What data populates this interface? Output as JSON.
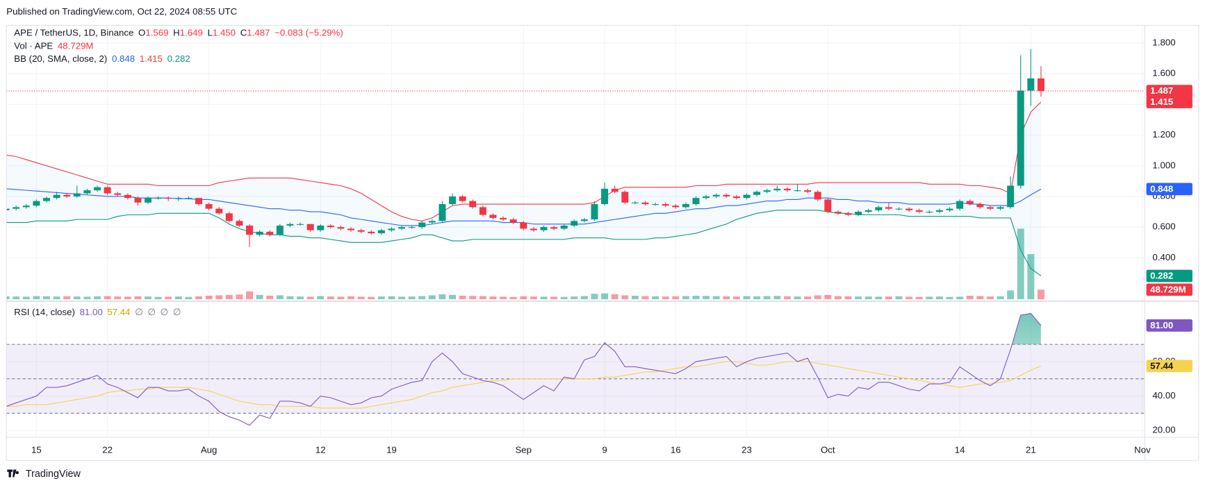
{
  "chart_data": {
    "type": "candlestick",
    "published": "Published on TradingView.com, Oct 22, 2024 08:55 UTC",
    "title": "APE / TetherUS, 1D, Binance",
    "ohlc_legend": [
      {
        "key": "O",
        "value": "1.569"
      },
      {
        "key": "H",
        "value": "1.649"
      },
      {
        "key": "L",
        "value": "1.450"
      },
      {
        "key": "C",
        "value": "1.487"
      }
    ],
    "change": "−0.083 (−5.29%)",
    "volume_legend": {
      "name": "Vol · APE",
      "value": "48.729M"
    },
    "bb_legend": {
      "name": "BB (20, SMA, close, 2)",
      "values": [
        "0.848",
        "1.415",
        "0.282"
      ]
    },
    "rsi_legend": {
      "name": "RSI (14, close)",
      "values": [
        "81.00",
        "57.44",
        "∅",
        "∅",
        "∅",
        "∅"
      ]
    },
    "footer": "TradingView",
    "up_color": "#089981",
    "down_color": "#f23645",
    "bb_colors": {
      "upper": "#f23645",
      "basis": "#2962ff",
      "lower": "#089981"
    },
    "rsi_color": "#7e57c2",
    "rsi_ma_color": "#f5d34e",
    "ylim": [
      0.13,
      1.88
    ],
    "yticks": [
      {
        "value": 0.4,
        "label": "0.400"
      },
      {
        "value": 0.6,
        "label": "0.600"
      },
      {
        "value": 0.8,
        "label": "0.800"
      },
      {
        "value": 1.0,
        "label": "1.000"
      },
      {
        "value": 1.2,
        "label": "1.200"
      },
      {
        "value": 1.4,
        "label": "1.400"
      },
      {
        "value": 1.6,
        "label": "1.600"
      },
      {
        "value": 1.8,
        "label": "1.800"
      }
    ],
    "rsi_ylim": [
      16,
      94
    ],
    "rsi_ticks": [
      {
        "value": 20,
        "label": "20.00"
      },
      {
        "value": 40,
        "label": "40.00"
      },
      {
        "value": 60,
        "label": "60.00"
      }
    ],
    "rsi_bands": [
      70,
      50,
      30
    ],
    "grid": true,
    "categories": [
      null,
      null,
      null,
      "15",
      null,
      null,
      null,
      null,
      null,
      null,
      "22",
      null,
      null,
      null,
      null,
      null,
      null,
      null,
      null,
      null,
      "Aug",
      null,
      null,
      null,
      null,
      null,
      null,
      null,
      null,
      null,
      null,
      "12",
      null,
      null,
      null,
      null,
      null,
      null,
      "19",
      null,
      null,
      null,
      null,
      null,
      null,
      null,
      null,
      null,
      null,
      null,
      null,
      "Sep",
      null,
      null,
      null,
      null,
      null,
      null,
      null,
      "9",
      null,
      null,
      null,
      null,
      null,
      null,
      "16",
      null,
      null,
      null,
      null,
      null,
      null,
      "23",
      null,
      null,
      null,
      null,
      null,
      null,
      null,
      "Oct",
      null,
      null,
      null,
      null,
      null,
      null,
      null,
      null,
      null,
      null,
      null,
      null,
      "14",
      null,
      null,
      null,
      null,
      null,
      null,
      "21",
      null,
      null,
      null,
      null,
      null,
      null,
      null,
      null,
      null,
      null,
      "Nov"
    ],
    "ohlc": [
      [
        0.71,
        0.74,
        0.7,
        0.72
      ],
      [
        0.72,
        0.74,
        0.71,
        0.73
      ],
      [
        0.73,
        0.75,
        0.72,
        0.74
      ],
      [
        0.74,
        0.78,
        0.73,
        0.77
      ],
      [
        0.77,
        0.8,
        0.76,
        0.79
      ],
      [
        0.79,
        0.83,
        0.78,
        0.81
      ],
      [
        0.81,
        0.82,
        0.79,
        0.8
      ],
      [
        0.8,
        0.87,
        0.79,
        0.82
      ],
      [
        0.82,
        0.85,
        0.81,
        0.84
      ],
      [
        0.84,
        0.87,
        0.83,
        0.86
      ],
      [
        0.86,
        0.87,
        0.81,
        0.82
      ],
      [
        0.82,
        0.83,
        0.8,
        0.81
      ],
      [
        0.81,
        0.82,
        0.78,
        0.79
      ],
      [
        0.79,
        0.8,
        0.74,
        0.76
      ],
      [
        0.76,
        0.8,
        0.75,
        0.79
      ],
      [
        0.79,
        0.8,
        0.78,
        0.79
      ],
      [
        0.79,
        0.8,
        0.77,
        0.785
      ],
      [
        0.785,
        0.8,
        0.77,
        0.79
      ],
      [
        0.79,
        0.8,
        0.78,
        0.79
      ],
      [
        0.79,
        0.79,
        0.74,
        0.75
      ],
      [
        0.75,
        0.76,
        0.71,
        0.72
      ],
      [
        0.72,
        0.73,
        0.68,
        0.69
      ],
      [
        0.69,
        0.7,
        0.63,
        0.64
      ],
      [
        0.64,
        0.65,
        0.6,
        0.61
      ],
      [
        0.61,
        0.62,
        0.47,
        0.55
      ],
      [
        0.55,
        0.58,
        0.54,
        0.57
      ],
      [
        0.57,
        0.58,
        0.54,
        0.55
      ],
      [
        0.55,
        0.62,
        0.54,
        0.61
      ],
      [
        0.61,
        0.63,
        0.6,
        0.62
      ],
      [
        0.62,
        0.63,
        0.61,
        0.62
      ],
      [
        0.62,
        0.62,
        0.57,
        0.58
      ],
      [
        0.58,
        0.62,
        0.57,
        0.61
      ],
      [
        0.61,
        0.62,
        0.59,
        0.6
      ],
      [
        0.6,
        0.61,
        0.58,
        0.59
      ],
      [
        0.59,
        0.6,
        0.57,
        0.58
      ],
      [
        0.58,
        0.59,
        0.56,
        0.57
      ],
      [
        0.57,
        0.58,
        0.55,
        0.56
      ],
      [
        0.56,
        0.59,
        0.55,
        0.58
      ],
      [
        0.58,
        0.6,
        0.57,
        0.59
      ],
      [
        0.59,
        0.61,
        0.58,
        0.6
      ],
      [
        0.6,
        0.61,
        0.59,
        0.6
      ],
      [
        0.6,
        0.64,
        0.59,
        0.63
      ],
      [
        0.63,
        0.65,
        0.62,
        0.64
      ],
      [
        0.64,
        0.77,
        0.63,
        0.75
      ],
      [
        0.75,
        0.82,
        0.74,
        0.8
      ],
      [
        0.8,
        0.81,
        0.76,
        0.77
      ],
      [
        0.77,
        0.78,
        0.72,
        0.73
      ],
      [
        0.73,
        0.74,
        0.67,
        0.68
      ],
      [
        0.68,
        0.69,
        0.65,
        0.66
      ],
      [
        0.66,
        0.67,
        0.64,
        0.65
      ],
      [
        0.65,
        0.66,
        0.62,
        0.63
      ],
      [
        0.63,
        0.64,
        0.58,
        0.59
      ],
      [
        0.59,
        0.6,
        0.57,
        0.58
      ],
      [
        0.58,
        0.61,
        0.57,
        0.6
      ],
      [
        0.6,
        0.61,
        0.58,
        0.59
      ],
      [
        0.59,
        0.62,
        0.58,
        0.61
      ],
      [
        0.61,
        0.65,
        0.6,
        0.64
      ],
      [
        0.64,
        0.66,
        0.63,
        0.65
      ],
      [
        0.65,
        0.77,
        0.64,
        0.75
      ],
      [
        0.75,
        0.89,
        0.74,
        0.85
      ],
      [
        0.85,
        0.87,
        0.82,
        0.83
      ],
      [
        0.83,
        0.84,
        0.75,
        0.76
      ],
      [
        0.76,
        0.77,
        0.75,
        0.76
      ],
      [
        0.76,
        0.77,
        0.74,
        0.75
      ],
      [
        0.75,
        0.76,
        0.74,
        0.75
      ],
      [
        0.75,
        0.76,
        0.73,
        0.74
      ],
      [
        0.74,
        0.75,
        0.72,
        0.73
      ],
      [
        0.73,
        0.76,
        0.72,
        0.75
      ],
      [
        0.75,
        0.8,
        0.74,
        0.79
      ],
      [
        0.79,
        0.81,
        0.78,
        0.8
      ],
      [
        0.8,
        0.82,
        0.79,
        0.81
      ],
      [
        0.81,
        0.82,
        0.79,
        0.8
      ],
      [
        0.8,
        0.81,
        0.78,
        0.79
      ],
      [
        0.79,
        0.82,
        0.78,
        0.81
      ],
      [
        0.81,
        0.84,
        0.8,
        0.83
      ],
      [
        0.83,
        0.85,
        0.82,
        0.84
      ],
      [
        0.84,
        0.87,
        0.83,
        0.85
      ],
      [
        0.85,
        0.86,
        0.83,
        0.84
      ],
      [
        0.84,
        0.88,
        0.83,
        0.84
      ],
      [
        0.84,
        0.85,
        0.82,
        0.83
      ],
      [
        0.83,
        0.84,
        0.77,
        0.78
      ],
      [
        0.78,
        0.79,
        0.69,
        0.7
      ],
      [
        0.7,
        0.71,
        0.68,
        0.69
      ],
      [
        0.69,
        0.7,
        0.67,
        0.68
      ],
      [
        0.68,
        0.71,
        0.67,
        0.7
      ],
      [
        0.7,
        0.72,
        0.69,
        0.71
      ],
      [
        0.71,
        0.74,
        0.7,
        0.73
      ],
      [
        0.73,
        0.76,
        0.71,
        0.72
      ],
      [
        0.72,
        0.73,
        0.71,
        0.72
      ],
      [
        0.72,
        0.73,
        0.7,
        0.71
      ],
      [
        0.71,
        0.72,
        0.69,
        0.7
      ],
      [
        0.7,
        0.71,
        0.69,
        0.7
      ],
      [
        0.7,
        0.72,
        0.69,
        0.71
      ],
      [
        0.71,
        0.73,
        0.7,
        0.72
      ],
      [
        0.72,
        0.78,
        0.71,
        0.77
      ],
      [
        0.77,
        0.78,
        0.74,
        0.75
      ],
      [
        0.75,
        0.76,
        0.72,
        0.73
      ],
      [
        0.73,
        0.74,
        0.71,
        0.72
      ],
      [
        0.72,
        0.74,
        0.71,
        0.73
      ],
      [
        0.73,
        0.93,
        0.72,
        0.87
      ],
      [
        0.87,
        1.72,
        0.85,
        1.49
      ],
      [
        1.49,
        1.76,
        1.39,
        1.569
      ],
      [
        1.569,
        1.649,
        1.45,
        1.487
      ],
      null,
      null,
      null,
      null,
      null,
      null,
      null,
      null,
      null,
      null
    ],
    "volume": [
      15,
      14,
      13,
      16,
      15,
      14,
      15,
      14,
      13,
      15,
      16,
      14,
      13,
      15,
      14,
      12,
      13,
      14,
      12,
      15,
      18,
      20,
      22,
      24,
      40,
      22,
      18,
      20,
      15,
      14,
      13,
      16,
      14,
      13,
      15,
      13,
      12,
      14,
      15,
      13,
      14,
      16,
      20,
      25,
      22,
      18,
      17,
      16,
      14,
      13,
      12,
      15,
      14,
      13,
      13,
      12,
      14,
      16,
      28,
      30,
      26,
      20,
      18,
      16,
      15,
      14,
      15,
      16,
      18,
      17,
      16,
      15,
      14,
      16,
      15,
      16,
      17,
      15,
      14,
      14,
      20,
      22,
      16,
      15,
      14,
      14,
      13,
      14,
      15,
      13,
      12,
      13,
      14,
      12,
      13,
      18,
      16,
      14,
      15,
      45,
      360,
      230,
      48.729,
      null,
      null,
      null,
      null,
      null,
      null,
      null,
      null,
      null,
      null
    ],
    "bb_upper": [
      1.07,
      1.06,
      1.04,
      1.02,
      1.0,
      0.98,
      0.96,
      0.94,
      0.92,
      0.9,
      0.88,
      0.88,
      0.88,
      0.88,
      0.88,
      0.87,
      0.87,
      0.87,
      0.87,
      0.87,
      0.87,
      0.89,
      0.9,
      0.91,
      0.92,
      0.92,
      0.92,
      0.92,
      0.92,
      0.91,
      0.9,
      0.89,
      0.88,
      0.87,
      0.85,
      0.82,
      0.78,
      0.74,
      0.7,
      0.67,
      0.65,
      0.64,
      0.66,
      0.7,
      0.74,
      0.75,
      0.75,
      0.75,
      0.75,
      0.75,
      0.75,
      0.75,
      0.75,
      0.75,
      0.75,
      0.75,
      0.75,
      0.75,
      0.76,
      0.8,
      0.84,
      0.86,
      0.86,
      0.86,
      0.86,
      0.86,
      0.86,
      0.86,
      0.87,
      0.87,
      0.87,
      0.88,
      0.88,
      0.88,
      0.88,
      0.88,
      0.88,
      0.88,
      0.88,
      0.88,
      0.89,
      0.89,
      0.89,
      0.89,
      0.89,
      0.89,
      0.89,
      0.89,
      0.89,
      0.89,
      0.89,
      0.88,
      0.88,
      0.88,
      0.88,
      0.87,
      0.87,
      0.86,
      0.85,
      0.82,
      1.2,
      1.35,
      1.415,
      null,
      null,
      null,
      null,
      null,
      null,
      null,
      null,
      null,
      null
    ],
    "bb_basis": [
      0.85,
      0.845,
      0.84,
      0.835,
      0.83,
      0.825,
      0.82,
      0.815,
      0.81,
      0.805,
      0.8,
      0.8,
      0.8,
      0.79,
      0.79,
      0.79,
      0.79,
      0.785,
      0.785,
      0.78,
      0.78,
      0.77,
      0.76,
      0.75,
      0.74,
      0.73,
      0.72,
      0.72,
      0.71,
      0.71,
      0.7,
      0.7,
      0.69,
      0.68,
      0.66,
      0.65,
      0.64,
      0.63,
      0.62,
      0.61,
      0.61,
      0.61,
      0.62,
      0.63,
      0.64,
      0.64,
      0.64,
      0.64,
      0.64,
      0.63,
      0.63,
      0.63,
      0.62,
      0.62,
      0.62,
      0.62,
      0.62,
      0.62,
      0.63,
      0.64,
      0.65,
      0.66,
      0.67,
      0.68,
      0.69,
      0.69,
      0.7,
      0.71,
      0.72,
      0.72,
      0.73,
      0.74,
      0.74,
      0.75,
      0.76,
      0.77,
      0.77,
      0.78,
      0.78,
      0.79,
      0.79,
      0.79,
      0.78,
      0.78,
      0.77,
      0.77,
      0.76,
      0.76,
      0.76,
      0.75,
      0.75,
      0.75,
      0.75,
      0.75,
      0.76,
      0.75,
      0.75,
      0.74,
      0.74,
      0.74,
      0.77,
      0.81,
      0.848,
      null,
      null,
      null,
      null,
      null,
      null,
      null,
      null,
      null,
      null
    ],
    "bb_lower": [
      0.63,
      0.63,
      0.63,
      0.64,
      0.64,
      0.64,
      0.64,
      0.65,
      0.65,
      0.65,
      0.65,
      0.67,
      0.68,
      0.68,
      0.68,
      0.69,
      0.69,
      0.69,
      0.69,
      0.69,
      0.69,
      0.66,
      0.62,
      0.59,
      0.57,
      0.56,
      0.55,
      0.55,
      0.54,
      0.54,
      0.53,
      0.53,
      0.52,
      0.51,
      0.5,
      0.5,
      0.5,
      0.5,
      0.51,
      0.52,
      0.53,
      0.55,
      0.55,
      0.53,
      0.51,
      0.51,
      0.52,
      0.52,
      0.52,
      0.52,
      0.52,
      0.52,
      0.52,
      0.52,
      0.52,
      0.52,
      0.53,
      0.53,
      0.53,
      0.53,
      0.52,
      0.52,
      0.52,
      0.52,
      0.53,
      0.53,
      0.54,
      0.55,
      0.56,
      0.58,
      0.6,
      0.62,
      0.65,
      0.67,
      0.69,
      0.7,
      0.71,
      0.71,
      0.71,
      0.71,
      0.71,
      0.7,
      0.69,
      0.69,
      0.68,
      0.68,
      0.68,
      0.68,
      0.68,
      0.67,
      0.67,
      0.67,
      0.67,
      0.67,
      0.67,
      0.67,
      0.66,
      0.66,
      0.66,
      0.66,
      0.45,
      0.33,
      0.282,
      null,
      null,
      null,
      null,
      null,
      null,
      null,
      null,
      null,
      null
    ],
    "rsi": [
      34,
      36,
      38,
      40,
      45,
      45,
      46,
      48,
      50,
      52,
      47,
      45,
      42,
      39,
      45,
      45,
      43,
      43,
      44,
      40,
      37,
      31,
      28,
      26,
      23,
      29,
      27,
      37,
      37,
      36,
      34,
      40,
      39,
      37,
      35,
      36,
      39,
      40,
      44,
      46,
      48,
      49,
      60,
      65,
      60,
      53,
      51,
      49,
      48,
      46,
      42,
      38,
      42,
      46,
      43,
      51,
      50,
      61,
      63,
      71,
      66,
      57,
      57,
      56,
      55,
      54,
      53,
      56,
      60,
      61,
      62,
      63,
      57,
      60,
      62,
      63,
      64,
      65,
      60,
      62,
      51,
      39,
      41,
      40,
      45,
      44,
      48,
      48,
      46,
      44,
      43,
      47,
      47,
      48,
      57,
      53,
      49,
      46,
      50,
      67,
      87,
      88,
      81,
      null,
      null,
      null,
      null,
      null,
      null,
      null,
      null,
      null,
      null
    ],
    "rsi_ma": [
      34,
      34,
      35,
      35,
      35,
      36,
      37,
      38,
      39,
      40,
      42,
      43,
      43,
      44,
      44,
      45,
      45,
      45,
      45,
      44,
      43,
      41,
      39,
      37,
      36,
      35,
      35,
      34,
      34,
      34,
      34,
      33,
      33,
      33,
      33,
      33,
      34,
      35,
      36,
      37,
      38,
      40,
      42,
      43,
      45,
      46,
      47,
      48,
      49,
      49,
      50,
      50,
      50,
      50,
      50,
      50,
      50,
      50,
      50,
      51,
      51,
      52,
      53,
      54,
      54,
      55,
      56,
      57,
      57,
      58,
      59,
      60,
      60,
      59,
      58,
      58,
      59,
      60,
      60,
      60,
      59,
      58,
      57,
      56,
      55,
      54,
      53,
      52,
      51,
      50,
      49,
      48,
      47,
      46,
      45,
      46,
      47,
      47,
      48,
      49,
      52,
      55,
      57.44,
      null,
      null,
      null,
      null,
      null,
      null,
      null,
      null,
      null,
      null
    ],
    "price_labels": [
      {
        "value": 1.487,
        "label": "1.487",
        "color": "#f23645"
      },
      {
        "value": 1.415,
        "label": "1.415",
        "color": "#f23645"
      },
      {
        "value": 0.848,
        "label": "0.848",
        "color": "#2962ff"
      },
      {
        "value": 0.282,
        "label": "0.282",
        "color": "#089981"
      }
    ],
    "volume_label": {
      "value": 48.729,
      "label": "48.729M",
      "color": "#f23645"
    },
    "rsi_labels": [
      {
        "value": 81,
        "label": "81.00",
        "color": "#7e57c2"
      },
      {
        "value": 57.44,
        "label": "57.44",
        "color": "#f5d34e"
      }
    ]
  }
}
